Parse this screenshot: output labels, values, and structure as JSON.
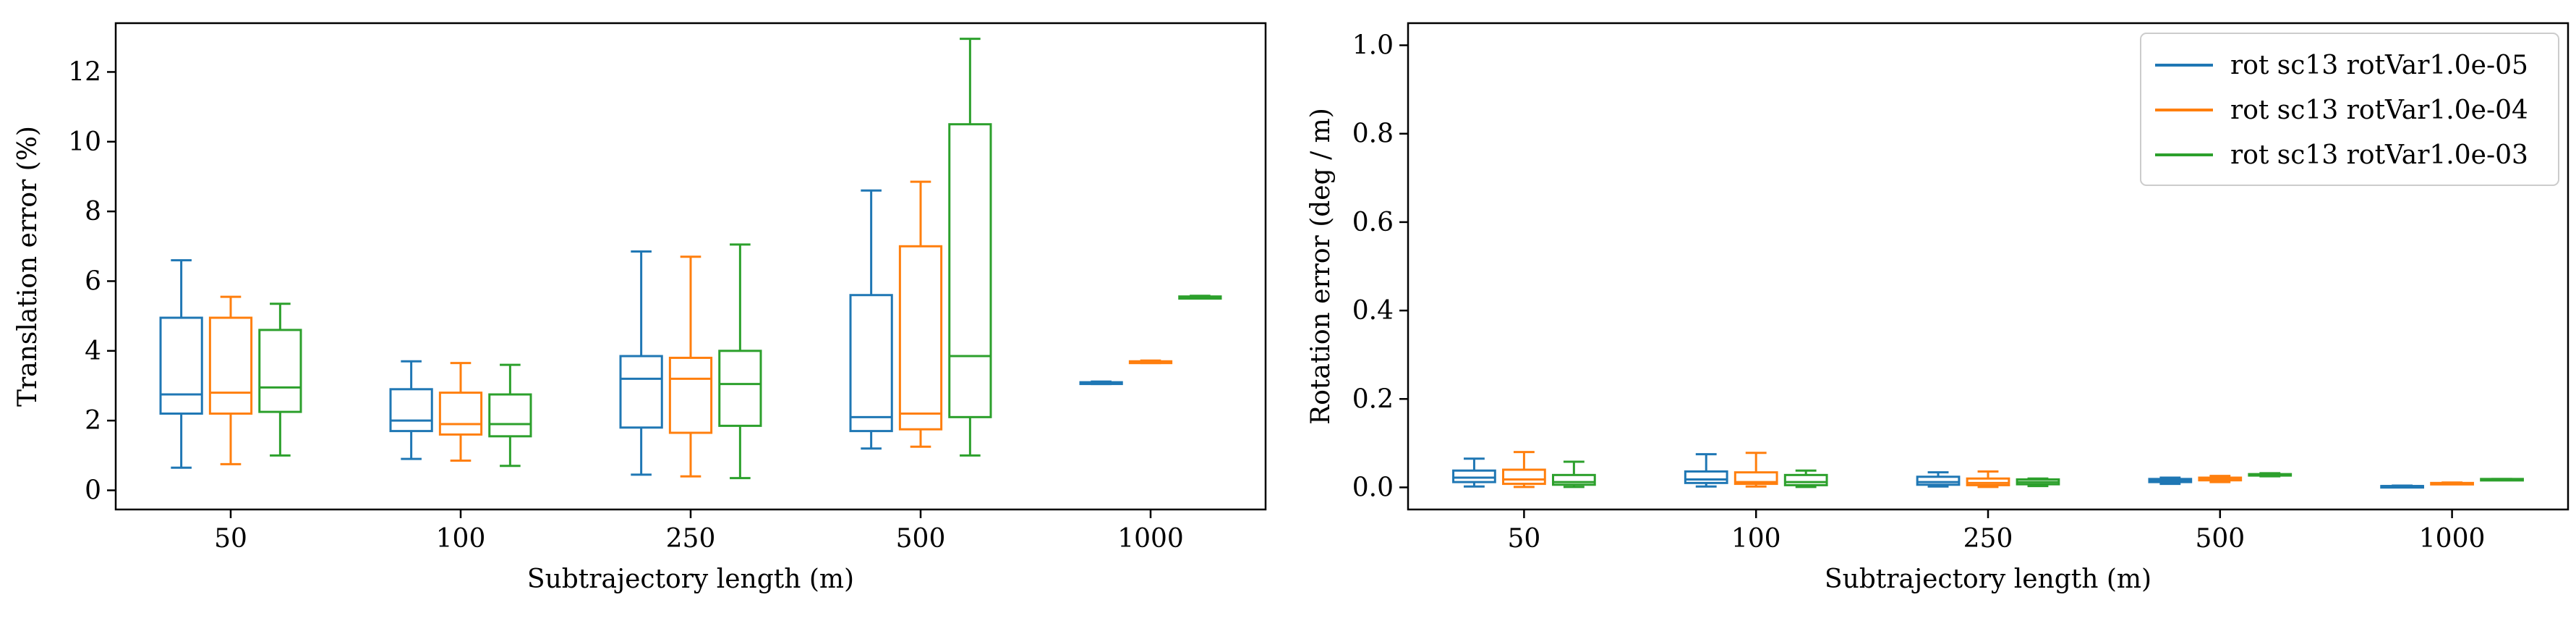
{
  "colors": {
    "series": [
      "#1f77b4",
      "#ff7f0e",
      "#2ca02c"
    ],
    "axes": "#000000",
    "background": "#ffffff",
    "legend_border": "#cccccc"
  },
  "chart_data": [
    {
      "type": "box",
      "title": "",
      "xlabel": "Subtrajectory length (m)",
      "ylabel": "Translation error (%)",
      "categories": [
        "50",
        "100",
        "250",
        "500",
        "1000"
      ],
      "ylim": [
        -0.55,
        13.4
      ],
      "yticks": [
        0,
        2,
        4,
        6,
        8,
        10,
        12
      ],
      "grid": false,
      "legend": null,
      "series": [
        {
          "name": "rot sc13 rotVar1.0e-05",
          "boxes": [
            {
              "whislo": 0.65,
              "q1": 2.2,
              "med": 2.75,
              "q3": 4.95,
              "whishi": 6.6
            },
            {
              "whislo": 0.9,
              "q1": 1.7,
              "med": 2.0,
              "q3": 2.9,
              "whishi": 3.7
            },
            {
              "whislo": 0.45,
              "q1": 1.8,
              "med": 3.2,
              "q3": 3.85,
              "whishi": 6.85
            },
            {
              "whislo": 1.2,
              "q1": 1.7,
              "med": 2.1,
              "q3": 5.6,
              "whishi": 8.6
            },
            {
              "whislo": 3.05,
              "q1": 3.05,
              "med": 3.08,
              "q3": 3.1,
              "whishi": 3.12
            }
          ]
        },
        {
          "name": "rot sc13 rotVar1.0e-04",
          "boxes": [
            {
              "whislo": 0.75,
              "q1": 2.2,
              "med": 2.8,
              "q3": 4.95,
              "whishi": 5.55
            },
            {
              "whislo": 0.85,
              "q1": 1.6,
              "med": 1.9,
              "q3": 2.8,
              "whishi": 3.65
            },
            {
              "whislo": 0.4,
              "q1": 1.65,
              "med": 3.2,
              "q3": 3.8,
              "whishi": 6.7
            },
            {
              "whislo": 1.25,
              "q1": 1.75,
              "med": 2.2,
              "q3": 7.0,
              "whishi": 8.85
            },
            {
              "whislo": 3.65,
              "q1": 3.65,
              "med": 3.68,
              "q3": 3.7,
              "whishi": 3.72
            }
          ]
        },
        {
          "name": "rot sc13 rotVar1.0e-03",
          "boxes": [
            {
              "whislo": 1.0,
              "q1": 2.25,
              "med": 2.95,
              "q3": 4.6,
              "whishi": 5.35
            },
            {
              "whislo": 0.7,
              "q1": 1.55,
              "med": 1.9,
              "q3": 2.75,
              "whishi": 3.6
            },
            {
              "whislo": 0.35,
              "q1": 1.85,
              "med": 3.05,
              "q3": 4.0,
              "whishi": 7.05
            },
            {
              "whislo": 1.0,
              "q1": 2.1,
              "med": 3.85,
              "q3": 10.5,
              "whishi": 12.95
            },
            {
              "whislo": 5.5,
              "q1": 5.5,
              "med": 5.53,
              "q3": 5.56,
              "whishi": 5.58
            }
          ]
        }
      ]
    },
    {
      "type": "box",
      "title": "",
      "xlabel": "Subtrajectory length (m)",
      "ylabel": "Rotation error (deg / m)",
      "categories": [
        "50",
        "100",
        "250",
        "500",
        "1000"
      ],
      "ylim": [
        -0.05,
        1.05
      ],
      "yticks": [
        0.0,
        0.2,
        0.4,
        0.6,
        0.8,
        1.0
      ],
      "grid": false,
      "legend": "top-right",
      "series": [
        {
          "name": "rot sc13 rotVar1.0e-05",
          "boxes": [
            {
              "whislo": 0.002,
              "q1": 0.012,
              "med": 0.022,
              "q3": 0.038,
              "whishi": 0.065
            },
            {
              "whislo": 0.002,
              "q1": 0.01,
              "med": 0.018,
              "q3": 0.036,
              "whishi": 0.075
            },
            {
              "whislo": 0.002,
              "q1": 0.006,
              "med": 0.012,
              "q3": 0.024,
              "whishi": 0.034
            },
            {
              "whislo": 0.008,
              "q1": 0.012,
              "med": 0.016,
              "q3": 0.019,
              "whishi": 0.022
            },
            {
              "whislo": 0.002,
              "q1": 0.002,
              "med": 0.003,
              "q3": 0.003,
              "whishi": 0.004
            }
          ]
        },
        {
          "name": "rot sc13 rotVar1.0e-04",
          "boxes": [
            {
              "whislo": 0.001,
              "q1": 0.008,
              "med": 0.018,
              "q3": 0.04,
              "whishi": 0.08
            },
            {
              "whislo": 0.002,
              "q1": 0.008,
              "med": 0.012,
              "q3": 0.034,
              "whishi": 0.078
            },
            {
              "whislo": 0.001,
              "q1": 0.005,
              "med": 0.01,
              "q3": 0.02,
              "whishi": 0.036
            },
            {
              "whislo": 0.012,
              "q1": 0.016,
              "med": 0.019,
              "q3": 0.022,
              "whishi": 0.026
            },
            {
              "whislo": 0.008,
              "q1": 0.008,
              "med": 0.009,
              "q3": 0.01,
              "whishi": 0.011
            }
          ]
        },
        {
          "name": "rot sc13 rotVar1.0e-03",
          "boxes": [
            {
              "whislo": 0.001,
              "q1": 0.006,
              "med": 0.012,
              "q3": 0.028,
              "whishi": 0.058
            },
            {
              "whislo": 0.001,
              "q1": 0.005,
              "med": 0.012,
              "q3": 0.028,
              "whishi": 0.038
            },
            {
              "whislo": 0.003,
              "q1": 0.007,
              "med": 0.012,
              "q3": 0.018,
              "whishi": 0.02
            },
            {
              "whislo": 0.025,
              "q1": 0.027,
              "med": 0.028,
              "q3": 0.03,
              "whishi": 0.032
            },
            {
              "whislo": 0.017,
              "q1": 0.017,
              "med": 0.018,
              "q3": 0.019,
              "whishi": 0.019
            }
          ]
        }
      ]
    }
  ]
}
